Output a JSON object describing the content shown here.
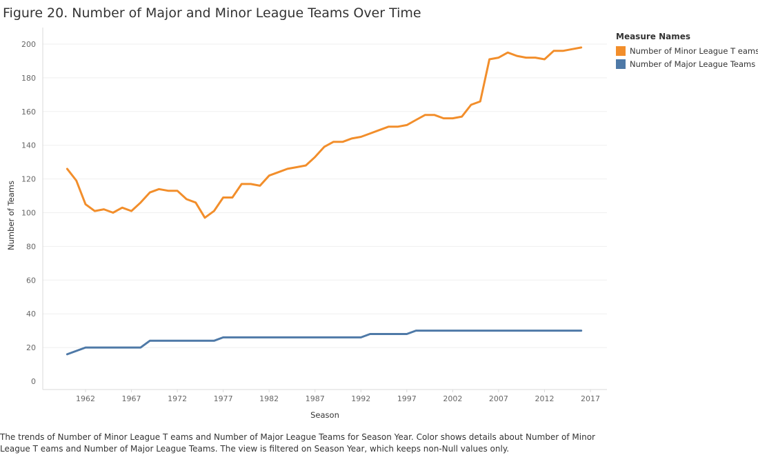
{
  "title": "Figure 20. Number of Major and Minor League Teams Over Time",
  "legend": {
    "title": "Measure Names",
    "items": [
      {
        "label": "Number of Minor League T eams",
        "color": "#f28e2b"
      },
      {
        "label": "Number of Major League Teams",
        "color": "#4e79a7"
      }
    ]
  },
  "caption": "The trends of Number of Minor League T eams and Number of Major League Teams for Season Year.  Color shows details about Number of Minor League T eams and Number of Major League Teams. The view is filtered on Season Year, which keeps non-Null values only.",
  "chart_data": {
    "type": "line",
    "xlabel": "Season",
    "ylabel": "Number of Teams",
    "xlim": [
      1957,
      2018
    ],
    "ylim": [
      0,
      205
    ],
    "x_ticks": [
      1962,
      1967,
      1972,
      1977,
      1982,
      1987,
      1992,
      1997,
      2002,
      2007,
      2012,
      2017
    ],
    "y_ticks": [
      0,
      20,
      40,
      60,
      80,
      100,
      120,
      140,
      160,
      180,
      200
    ],
    "grid": "horizontal",
    "legend_position": "right",
    "x": [
      1960,
      1961,
      1962,
      1963,
      1964,
      1965,
      1966,
      1967,
      1968,
      1969,
      1970,
      1971,
      1972,
      1973,
      1974,
      1975,
      1976,
      1977,
      1978,
      1979,
      1980,
      1981,
      1982,
      1983,
      1984,
      1985,
      1986,
      1987,
      1988,
      1989,
      1990,
      1991,
      1992,
      1993,
      1994,
      1995,
      1996,
      1997,
      1998,
      1999,
      2000,
      2001,
      2002,
      2003,
      2004,
      2005,
      2006,
      2007,
      2008,
      2009,
      2010,
      2011,
      2012,
      2013,
      2014,
      2015,
      2016
    ],
    "series": [
      {
        "name": "Number of Minor League T eams",
        "color": "#f28e2b",
        "values": [
          126,
          119,
          105,
          101,
          102,
          100,
          103,
          101,
          106,
          112,
          114,
          113,
          113,
          108,
          106,
          97,
          101,
          109,
          109,
          117,
          117,
          116,
          122,
          124,
          126,
          127,
          128,
          133,
          139,
          142,
          142,
          144,
          145,
          147,
          149,
          151,
          151,
          152,
          155,
          158,
          158,
          156,
          156,
          157,
          164,
          166,
          191,
          192,
          195,
          193,
          192,
          192,
          191,
          196,
          196,
          197,
          198
        ]
      },
      {
        "name": "Number of Major League Teams",
        "color": "#4e79a7",
        "values": [
          16,
          18,
          20,
          20,
          20,
          20,
          20,
          20,
          20,
          24,
          24,
          24,
          24,
          24,
          24,
          24,
          24,
          26,
          26,
          26,
          26,
          26,
          26,
          26,
          26,
          26,
          26,
          26,
          26,
          26,
          26,
          26,
          26,
          28,
          28,
          28,
          28,
          28,
          30,
          30,
          30,
          30,
          30,
          30,
          30,
          30,
          30,
          30,
          30,
          30,
          30,
          30,
          30,
          30,
          30,
          30,
          30
        ]
      }
    ]
  }
}
